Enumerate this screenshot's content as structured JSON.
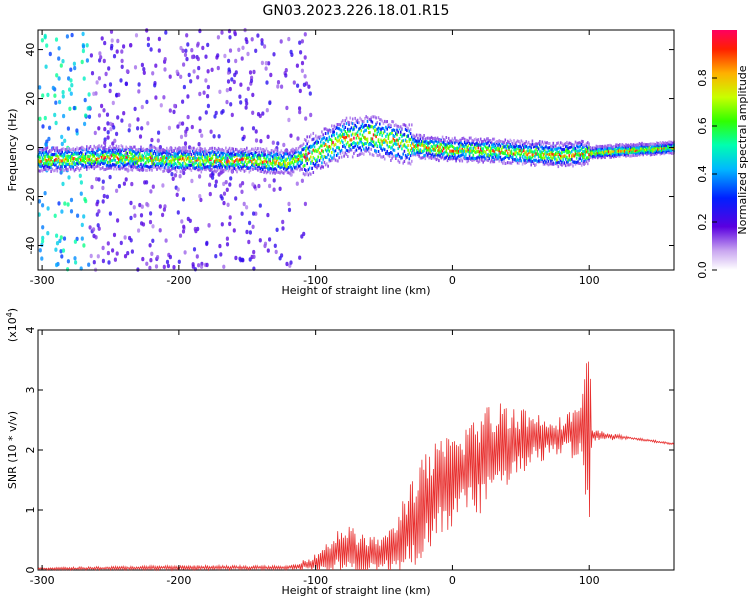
{
  "title": "GN03.2023.226.18.01.R15",
  "chart_data": [
    {
      "type": "heatmap",
      "xlabel": "Height of straight line (km)",
      "ylabel": "Frequency (Hz)",
      "xlim": [
        -303,
        162
      ],
      "ylim": [
        -50,
        48
      ],
      "xticks": [
        -300,
        -200,
        -100,
        0,
        100
      ],
      "yticks": [
        -40,
        -20,
        0,
        20,
        40
      ],
      "colorbar": {
        "label": "Normalized spectral amplitude",
        "range": [
          0,
          1
        ],
        "ticks": [
          0.0,
          0.2,
          0.4,
          0.6,
          0.8
        ],
        "tick_labels": [
          "0.0",
          "0.2",
          "0.4",
          "0.6",
          "0.8"
        ]
      },
      "ridge": [
        {
          "x": -300,
          "f": -5
        },
        {
          "x": -250,
          "f": -4
        },
        {
          "x": -200,
          "f": -5
        },
        {
          "x": -150,
          "f": -5
        },
        {
          "x": -120,
          "f": -6
        },
        {
          "x": -100,
          "f": -2
        },
        {
          "x": -80,
          "f": 4
        },
        {
          "x": -60,
          "f": 5
        },
        {
          "x": -40,
          "f": 2
        },
        {
          "x": -20,
          "f": 0
        },
        {
          "x": 0,
          "f": -1
        },
        {
          "x": 20,
          "f": -1
        },
        {
          "x": 50,
          "f": -2
        },
        {
          "x": 80,
          "f": -3
        },
        {
          "x": 100,
          "f": -2
        },
        {
          "x": 130,
          "f": -1
        },
        {
          "x": 160,
          "f": 0
        }
      ]
    },
    {
      "type": "line",
      "xlabel": "Height of straight line (km)",
      "ylabel": "SNR (10 * v/v)",
      "y_scale_label": "(x10",
      "y_scale_exp": "4",
      "y_scale_close": ")",
      "xlim": [
        -303,
        162
      ],
      "ylim": [
        0,
        4
      ],
      "xticks": [
        -300,
        -200,
        -100,
        0,
        100
      ],
      "yticks": [
        0,
        1,
        2,
        3,
        4
      ],
      "series_color": "#e8302f",
      "envelope": [
        {
          "x": -303,
          "mean": 0.02,
          "amp": 0.02
        },
        {
          "x": -200,
          "mean": 0.04,
          "amp": 0.04
        },
        {
          "x": -120,
          "mean": 0.04,
          "amp": 0.03
        },
        {
          "x": -100,
          "mean": 0.12,
          "amp": 0.15
        },
        {
          "x": -80,
          "mean": 0.35,
          "amp": 0.45
        },
        {
          "x": -60,
          "mean": 0.25,
          "amp": 0.3
        },
        {
          "x": -45,
          "mean": 0.3,
          "amp": 0.4
        },
        {
          "x": -30,
          "mean": 0.8,
          "amp": 0.8
        },
        {
          "x": -15,
          "mean": 1.2,
          "amp": 0.9
        },
        {
          "x": 0,
          "mean": 1.5,
          "amp": 0.8
        },
        {
          "x": 20,
          "mean": 1.8,
          "amp": 0.9
        },
        {
          "x": 40,
          "mean": 2.1,
          "amp": 0.8
        },
        {
          "x": 60,
          "mean": 2.2,
          "amp": 0.45
        },
        {
          "x": 80,
          "mean": 2.25,
          "amp": 0.3
        },
        {
          "x": 95,
          "mean": 2.3,
          "amp": 0.6
        },
        {
          "x": 100,
          "mean": 2.3,
          "amp": 1.8
        },
        {
          "x": 102,
          "mean": 2.25,
          "amp": 0.1
        },
        {
          "x": 130,
          "mean": 2.2,
          "amp": 0.02
        },
        {
          "x": 162,
          "mean": 2.1,
          "amp": 0.02
        }
      ]
    }
  ]
}
